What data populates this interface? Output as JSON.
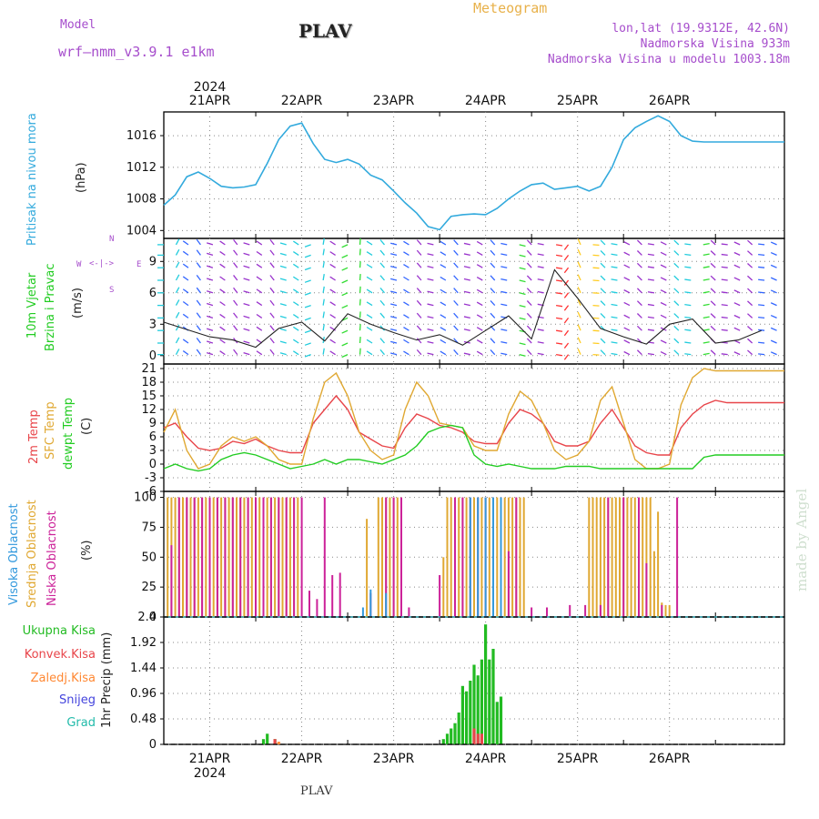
{
  "header": {
    "model_label": "Model",
    "model_name": "wrf—nmm_v3.9.1  e1km",
    "title": "PLAV",
    "meteogram": "Meteogram",
    "coords": "lon,lat (19.9312E, 42.6N)",
    "elev": "Nadmorska Visina 933m",
    "elev_model": "Nadmorska Visina u modelu 1003.18m",
    "footer": "PLAV",
    "made_by": "made by Angel"
  },
  "colors": {
    "pressure": "#33aadd",
    "wind_speed": "#222222",
    "temp2m": "#e8454a",
    "sfc_temp": "#e0a832",
    "dewpt": "#22cc22",
    "high_cloud": "#3399dd",
    "mid_cloud": "#e0a832",
    "low_cloud": "#cc2299",
    "precip": "#22bb22",
    "conv": "#e8454a",
    "frozen": "#ff8833",
    "snow": "#4444dd",
    "hail": "#22bbaa"
  },
  "chart_data": [
    {
      "type": "line",
      "panel": "pressure",
      "ylabel": "Pritisak na nivou mora",
      "unit": "(hPa)",
      "ylim": [
        1003,
        1019
      ],
      "yticks": [
        "1004",
        "1008",
        "1012",
        "1016"
      ],
      "x_unit": "hours from 20APR 12UTC",
      "x": [
        0,
        3,
        6,
        9,
        12,
        15,
        18,
        21,
        24,
        27,
        30,
        33,
        36,
        39,
        42,
        45,
        48,
        51,
        54,
        57,
        60,
        63,
        66,
        69,
        72,
        75,
        78,
        81,
        84,
        87,
        90,
        93,
        96,
        99,
        102,
        105,
        108,
        111,
        114,
        117,
        120,
        123,
        126,
        129,
        132,
        135,
        138,
        141,
        144,
        147,
        150,
        153,
        156,
        159,
        162
      ],
      "values": [
        1007.2,
        1008.5,
        1010.8,
        1011.4,
        1010.6,
        1009.6,
        1009.4,
        1009.5,
        1009.8,
        1012.5,
        1015.5,
        1017.2,
        1017.6,
        1015.0,
        1013.0,
        1012.6,
        1013.0,
        1012.4,
        1011.0,
        1010.4,
        1009.0,
        1007.5,
        1006.2,
        1004.5,
        1004.1,
        1005.8,
        1006.0,
        1006.1,
        1006.0,
        1006.8,
        1008.0,
        1009.0,
        1009.8,
        1010.0,
        1009.2,
        1009.4,
        1009.6,
        1009.0,
        1009.6,
        1012.0,
        1015.5,
        1017.0,
        1017.8,
        1018.5,
        1017.8,
        1016.0,
        1015.3,
        1015.2,
        1015.2,
        1015.2,
        1015.2,
        1015.2,
        1015.2,
        1015.2,
        1015.2
      ]
    },
    {
      "type": "line",
      "panel": "wind",
      "ylabel": "10m Vjetar",
      "ylabel2": "Brzina i Pravac",
      "unit": "(m/s)",
      "ylim": [
        -0.8,
        11.2
      ],
      "yticks": [
        "0",
        "3",
        "6",
        "9"
      ],
      "compass": {
        "n": "N",
        "s": "S",
        "e": "E",
        "w": "W"
      },
      "x": [
        0,
        6,
        12,
        18,
        24,
        30,
        36,
        42,
        48,
        54,
        60,
        66,
        72,
        78,
        84,
        90,
        96,
        102,
        108,
        114,
        120,
        126,
        132,
        138,
        144,
        150,
        156
      ],
      "values": [
        3.2,
        2.5,
        1.8,
        1.5,
        0.8,
        2.6,
        3.2,
        1.4,
        4.0,
        3.0,
        2.2,
        1.5,
        2.0,
        1.0,
        2.4,
        3.8,
        1.6,
        8.2,
        5.5,
        2.6,
        1.8,
        1.1,
        3.0,
        3.5,
        1.2,
        1.5,
        2.4
      ]
    },
    {
      "type": "line",
      "panel": "temperature",
      "ylabels": [
        "2m Temp",
        "SFC Temp",
        "dewpt Temp"
      ],
      "unit": "(C)",
      "ylim": [
        -6,
        22
      ],
      "yticks": [
        "-6",
        "-3",
        "0",
        "3",
        "6",
        "9",
        "12",
        "15",
        "18",
        "21"
      ],
      "x": [
        0,
        3,
        6,
        9,
        12,
        15,
        18,
        21,
        24,
        27,
        30,
        33,
        36,
        39,
        42,
        45,
        48,
        51,
        54,
        57,
        60,
        63,
        66,
        69,
        72,
        75,
        78,
        81,
        84,
        87,
        90,
        93,
        96,
        99,
        102,
        105,
        108,
        111,
        114,
        117,
        120,
        123,
        126,
        129,
        132,
        135,
        138,
        141,
        144,
        147,
        150,
        153,
        156,
        159,
        162
      ],
      "series": [
        {
          "name": "2m Temp",
          "values": [
            8,
            9,
            6,
            3.5,
            3,
            3.5,
            5,
            4.5,
            5.5,
            4,
            3,
            2.5,
            2.5,
            9,
            12,
            15,
            12,
            7,
            5.5,
            4,
            3.5,
            8,
            11,
            10,
            8.5,
            8,
            7,
            5,
            4.5,
            4.5,
            9,
            12,
            11,
            9,
            5,
            4,
            4,
            5,
            9,
            12,
            8,
            4,
            2.5,
            2,
            2,
            8,
            11,
            13,
            14,
            13.5,
            13.5,
            13.5,
            13.5,
            13.5,
            13.5
          ]
        },
        {
          "name": "SFC Temp",
          "values": [
            7,
            12,
            3,
            -1,
            0,
            4,
            6,
            5,
            6,
            4,
            1,
            0,
            0,
            10,
            18,
            20,
            15,
            7,
            3,
            1,
            2,
            12,
            18,
            15,
            9,
            8.5,
            8,
            4,
            3,
            3,
            11,
            16,
            14,
            9,
            3,
            1,
            2,
            5,
            14,
            17,
            9,
            1,
            -1,
            -1,
            0,
            13,
            19,
            21,
            20.5,
            20.5,
            20.5,
            20.5,
            20.5,
            20.5,
            20.5
          ]
        },
        {
          "name": "dewpt Temp",
          "values": [
            -1,
            0,
            -1,
            -1.5,
            -1,
            1,
            2,
            2.5,
            2,
            1,
            0,
            -1,
            -0.5,
            0,
            1,
            0,
            1,
            1,
            0.5,
            0,
            1,
            2,
            4,
            7,
            8,
            8.5,
            8,
            2,
            0,
            -0.5,
            0,
            -0.5,
            -1,
            -1,
            -1,
            -0.5,
            -0.5,
            -0.5,
            -1,
            -1,
            -1,
            -1,
            -1,
            -1,
            -1,
            -1,
            -1,
            1.5,
            2,
            2,
            2,
            2,
            2,
            2,
            2
          ]
        }
      ]
    },
    {
      "type": "bar",
      "panel": "cloud",
      "ylabels": [
        "Visoka Oblacnost",
        "Srednja Oblacnost",
        "Niska Oblacnost"
      ],
      "unit": "(%)",
      "ylim": [
        0,
        105
      ],
      "yticks": [
        "0",
        "25",
        "50",
        "75",
        "100"
      ],
      "series": [
        {
          "name": "Srednja Oblacnost",
          "x": [
            1,
            2,
            3,
            4,
            5,
            6,
            7,
            8,
            9,
            10,
            11,
            12,
            13,
            14,
            15,
            16,
            17,
            18,
            19,
            20,
            21,
            22,
            23,
            24,
            25,
            26,
            27,
            28,
            29,
            30,
            31,
            32,
            33,
            34,
            35,
            53,
            56,
            57,
            58,
            59,
            60,
            61,
            62,
            73,
            74,
            75,
            76,
            77,
            78,
            79,
            80,
            81,
            82,
            83,
            84,
            85,
            86,
            87,
            88,
            89,
            90,
            91,
            92,
            93,
            94,
            111,
            112,
            113,
            114,
            115,
            116,
            117,
            118,
            119,
            120,
            121,
            122,
            123,
            124,
            125,
            126,
            127,
            128,
            129,
            130,
            131,
            132
          ],
          "values": [
            100,
            100,
            100,
            100,
            100,
            100,
            100,
            100,
            100,
            100,
            100,
            100,
            100,
            100,
            100,
            100,
            100,
            100,
            100,
            100,
            100,
            100,
            100,
            100,
            100,
            100,
            100,
            100,
            100,
            100,
            100,
            100,
            100,
            100,
            100,
            82,
            100,
            100,
            100,
            100,
            100,
            100,
            100,
            50,
            100,
            100,
            100,
            100,
            100,
            100,
            100,
            100,
            100,
            100,
            100,
            100,
            100,
            100,
            100,
            100,
            100,
            100,
            100,
            100,
            100,
            100,
            100,
            100,
            100,
            100,
            100,
            100,
            100,
            100,
            100,
            100,
            100,
            100,
            100,
            100,
            100,
            100,
            55,
            88,
            12,
            10,
            10
          ]
        },
        {
          "name": "Niska Oblacnost",
          "x": [
            2,
            4,
            6,
            8,
            10,
            12,
            14,
            16,
            18,
            20,
            22,
            24,
            26,
            28,
            30,
            32,
            34,
            36,
            38,
            40,
            42,
            44,
            46,
            54,
            58,
            60,
            62,
            64,
            72,
            76,
            78,
            80,
            82,
            84,
            86,
            88,
            90,
            92,
            96,
            100,
            106,
            110,
            114,
            116,
            120,
            124,
            126,
            130,
            134
          ],
          "values": [
            60,
            100,
            100,
            100,
            100,
            100,
            100,
            100,
            100,
            100,
            100,
            100,
            100,
            100,
            100,
            100,
            100,
            100,
            22,
            15,
            100,
            35,
            37,
            20,
            100,
            100,
            100,
            8,
            35,
            100,
            100,
            100,
            100,
            100,
            100,
            100,
            55,
            100,
            8,
            8,
            10,
            10,
            10,
            100,
            100,
            100,
            45,
            10,
            100
          ]
        },
        {
          "name": "Visoka Oblacnost",
          "x": [
            52,
            54,
            58,
            80,
            82,
            84,
            86,
            88
          ],
          "values": [
            8,
            23,
            20,
            100,
            100,
            100,
            100,
            100
          ]
        }
      ]
    },
    {
      "type": "bar",
      "panel": "precip",
      "ylabel": "1hr Precip",
      "unit": "(mm)",
      "ylim": [
        0,
        2.4
      ],
      "yticks": [
        "0",
        "0.48",
        "0.96",
        "1.44",
        "1.92",
        "2.4"
      ],
      "legend": [
        "Ukupna Kisa",
        "Konvek.Kisa",
        "Zaledj.Kisa",
        "Snijeg",
        "Grad"
      ],
      "series": [
        {
          "name": "Ukupna Kisa",
          "x": [
            26,
            27,
            29,
            73,
            74,
            75,
            76,
            77,
            78,
            79,
            80,
            81,
            82,
            83,
            84,
            85,
            86,
            87,
            88
          ],
          "values": [
            0.1,
            0.2,
            0.1,
            0.1,
            0.2,
            0.3,
            0.4,
            0.6,
            1.1,
            1.0,
            1.2,
            1.5,
            1.3,
            1.6,
            2.26,
            1.6,
            1.8,
            0.8,
            0.9
          ]
        },
        {
          "name": "Konvek.Kisa",
          "x": [
            29,
            81,
            82,
            83
          ],
          "values": [
            0.1,
            0.3,
            0.2,
            0.2
          ]
        },
        {
          "name": "Zaledj.Kisa",
          "x": [
            30
          ],
          "values": [
            0.05
          ]
        }
      ]
    }
  ],
  "x_axis": {
    "days": [
      "21APR",
      "22APR",
      "23APR",
      "24APR",
      "25APR",
      "26APR"
    ],
    "year": "2024"
  }
}
